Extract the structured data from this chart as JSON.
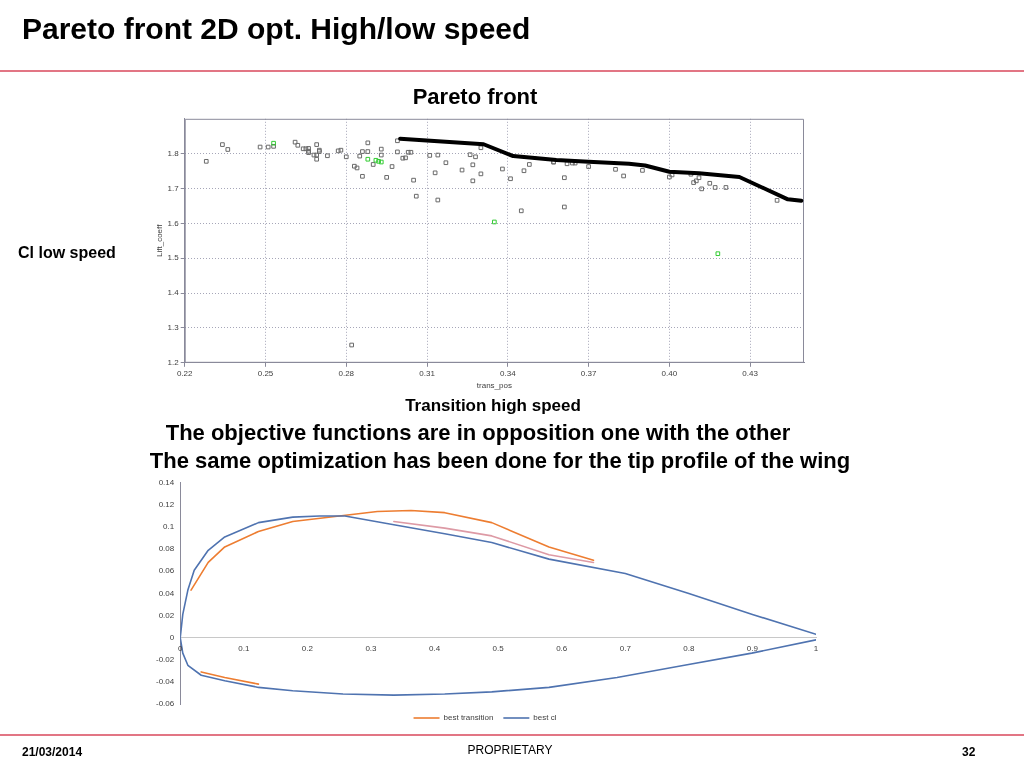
{
  "chart_data": [
    {
      "type": "scatter",
      "title": "Pareto front 2D opt. High/low speed",
      "subtitle": "Pareto front",
      "xlabel": "trans_pos",
      "ylabel": "Lift_coeff",
      "annotations": [
        "Cl low speed",
        "Transition high speed",
        "The objective functions are in opposition one with the other"
      ],
      "xlim": [
        0.22,
        0.45
      ],
      "xticks": [
        0.22,
        0.25,
        0.28,
        0.31,
        0.34,
        0.37,
        {
          "value": 0.4,
          "label": "0.40"
        },
        0.43
      ],
      "ylim": [
        1.2,
        1.9
      ],
      "yticks": [
        1.2,
        1.3,
        1.4,
        1.5,
        1.6,
        1.7,
        1.8
      ],
      "grid": true,
      "marker": "square",
      "series": [
        {
          "color": "#6a6a6a",
          "x": [
            0.228,
            0.234,
            0.236,
            0.248,
            0.251,
            0.253,
            0.261,
            0.262,
            0.264,
            0.265,
            0.266,
            0.266,
            0.266,
            0.268,
            0.269,
            0.269,
            0.269,
            0.27,
            0.27,
            0.273,
            0.277,
            0.278,
            0.28,
            0.282,
            0.283,
            0.284,
            0.285,
            0.286,
            0.286,
            0.288,
            0.288,
            0.29,
            0.293,
            0.293,
            0.295,
            0.297,
            0.299,
            0.299,
            0.301,
            0.302,
            0.303,
            0.304,
            0.305,
            0.306,
            0.311,
            0.313,
            0.314,
            0.314,
            0.317,
            0.323,
            0.326,
            0.327,
            0.327,
            0.328,
            0.33,
            0.33,
            0.338,
            0.341,
            0.345,
            0.346,
            0.348,
            0.357,
            0.357,
            0.361,
            0.361,
            0.362,
            0.364,
            0.365,
            0.37,
            0.38,
            0.383,
            0.39,
            0.4,
            0.401,
            0.408,
            0.409,
            0.41,
            0.411,
            0.412,
            0.415,
            0.417,
            0.421,
            0.44
          ],
          "values": [
            1.778,
            1.826,
            1.812,
            1.819,
            1.819,
            1.821,
            1.833,
            1.824,
            1.814,
            1.814,
            1.815,
            1.807,
            1.803,
            1.796,
            1.826,
            1.796,
            1.784,
            1.81,
            1.806,
            1.794,
            1.808,
            1.81,
            1.791,
            1.251,
            1.764,
            1.759,
            1.793,
            1.735,
            1.806,
            1.806,
            1.831,
            1.769,
            1.813,
            1.796,
            1.732,
            1.763,
            1.805,
            1.837,
            1.787,
            1.788,
            1.804,
            1.804,
            1.724,
            1.678,
            1.795,
            1.745,
            1.667,
            1.796,
            1.774,
            1.753,
            1.797,
            1.768,
            1.722,
            1.791,
            1.817,
            1.742,
            1.756,
            1.728,
            1.636,
            1.751,
            1.769,
            1.776,
            1.776,
            1.731,
            1.647,
            1.771,
            1.773,
            1.773,
            1.763,
            1.755,
            1.736,
            1.752,
            1.733,
            1.739,
            1.741,
            1.717,
            1.722,
            1.731,
            1.699,
            1.715,
            1.703,
            1.703,
            1.666
          ]
        },
        {
          "color": "#33cc33",
          "x": [
            0.253,
            0.288,
            0.291,
            0.292,
            0.293,
            0.335,
            0.418
          ],
          "values": [
            1.83,
            1.784,
            1.781,
            1.778,
            1.776,
            1.604,
            1.513
          ]
        },
        {
          "type": "line",
          "marker": "none",
          "color": "#000000",
          "x": [
            0.3,
            0.331,
            0.342,
            0.358,
            0.37,
            0.385,
            0.391,
            0.4,
            0.411,
            0.426,
            0.444,
            0.449
          ],
          "values": [
            1.843,
            1.827,
            1.793,
            1.782,
            1.777,
            1.771,
            1.766,
            1.748,
            1.744,
            1.733,
            1.669,
            1.665
          ]
        }
      ]
    },
    {
      "type": "line",
      "annotations": [
        "The same optimization has been done for the tip profile of the wing",
        "21/03/2014",
        "PROPRIETARY",
        "32"
      ],
      "xlim": [
        0,
        1
      ],
      "xticks": [
        0,
        0.1,
        0.2,
        0.3,
        0.4,
        0.5,
        0.6,
        0.7,
        0.8,
        0.9,
        1
      ],
      "ylim": [
        -0.06,
        0.14
      ],
      "yticks": [
        -0.06,
        -0.04,
        -0.02,
        0,
        0.02,
        0.04,
        0.06,
        0.08,
        0.1,
        0.12,
        0.14
      ],
      "legend": "bottom",
      "series": [
        {
          "name": "best transition",
          "color": "#ed7d31",
          "x": [
            0.65,
            0.58,
            0.49,
            0.416,
            0.363,
            0.31,
            0.177,
            0.123,
            0.07,
            0.044,
            0.017,
            null,
            0.033,
            0.07,
            0.123
          ],
          "values": [
            0.07,
            0.082,
            0.104,
            0.113,
            0.115,
            0.114,
            0.105,
            0.096,
            0.082,
            0.068,
            0.043,
            null,
            -0.031,
            -0.036,
            -0.042
          ]
        },
        {
          "color": "#dd9aa5",
          "x": [
            0.65,
            0.58,
            0.49,
            0.416,
            0.336
          ],
          "values": [
            0.068,
            0.075,
            0.092,
            0.099,
            0.105
          ]
        },
        {
          "name": "best cl",
          "color": "#4f73b0",
          "x": [
            1,
            0.9,
            0.8,
            0.7,
            0.58,
            0.49,
            0.416,
            0.336,
            0.259,
            0.219,
            0.177,
            0.123,
            0.07,
            0.044,
            0.022,
            0.012,
            0.004,
            0,
            0.004,
            0.012,
            0.033,
            0.07,
            0.123,
            0.177,
            0.256,
            0.336,
            0.416,
            0.49,
            0.58,
            0.687,
            0.793,
            0.899,
            1
          ],
          "values": [
            0.003,
            0.021,
            0.04,
            0.058,
            0.071,
            0.086,
            0.094,
            0.102,
            0.11,
            0.11,
            0.109,
            0.104,
            0.091,
            0.079,
            0.061,
            0.043,
            0.021,
            0,
            -0.014,
            -0.025,
            -0.034,
            -0.039,
            -0.045,
            -0.048,
            -0.051,
            -0.052,
            -0.051,
            -0.049,
            -0.045,
            -0.036,
            -0.025,
            -0.014,
            -0.002
          ]
        }
      ]
    }
  ]
}
